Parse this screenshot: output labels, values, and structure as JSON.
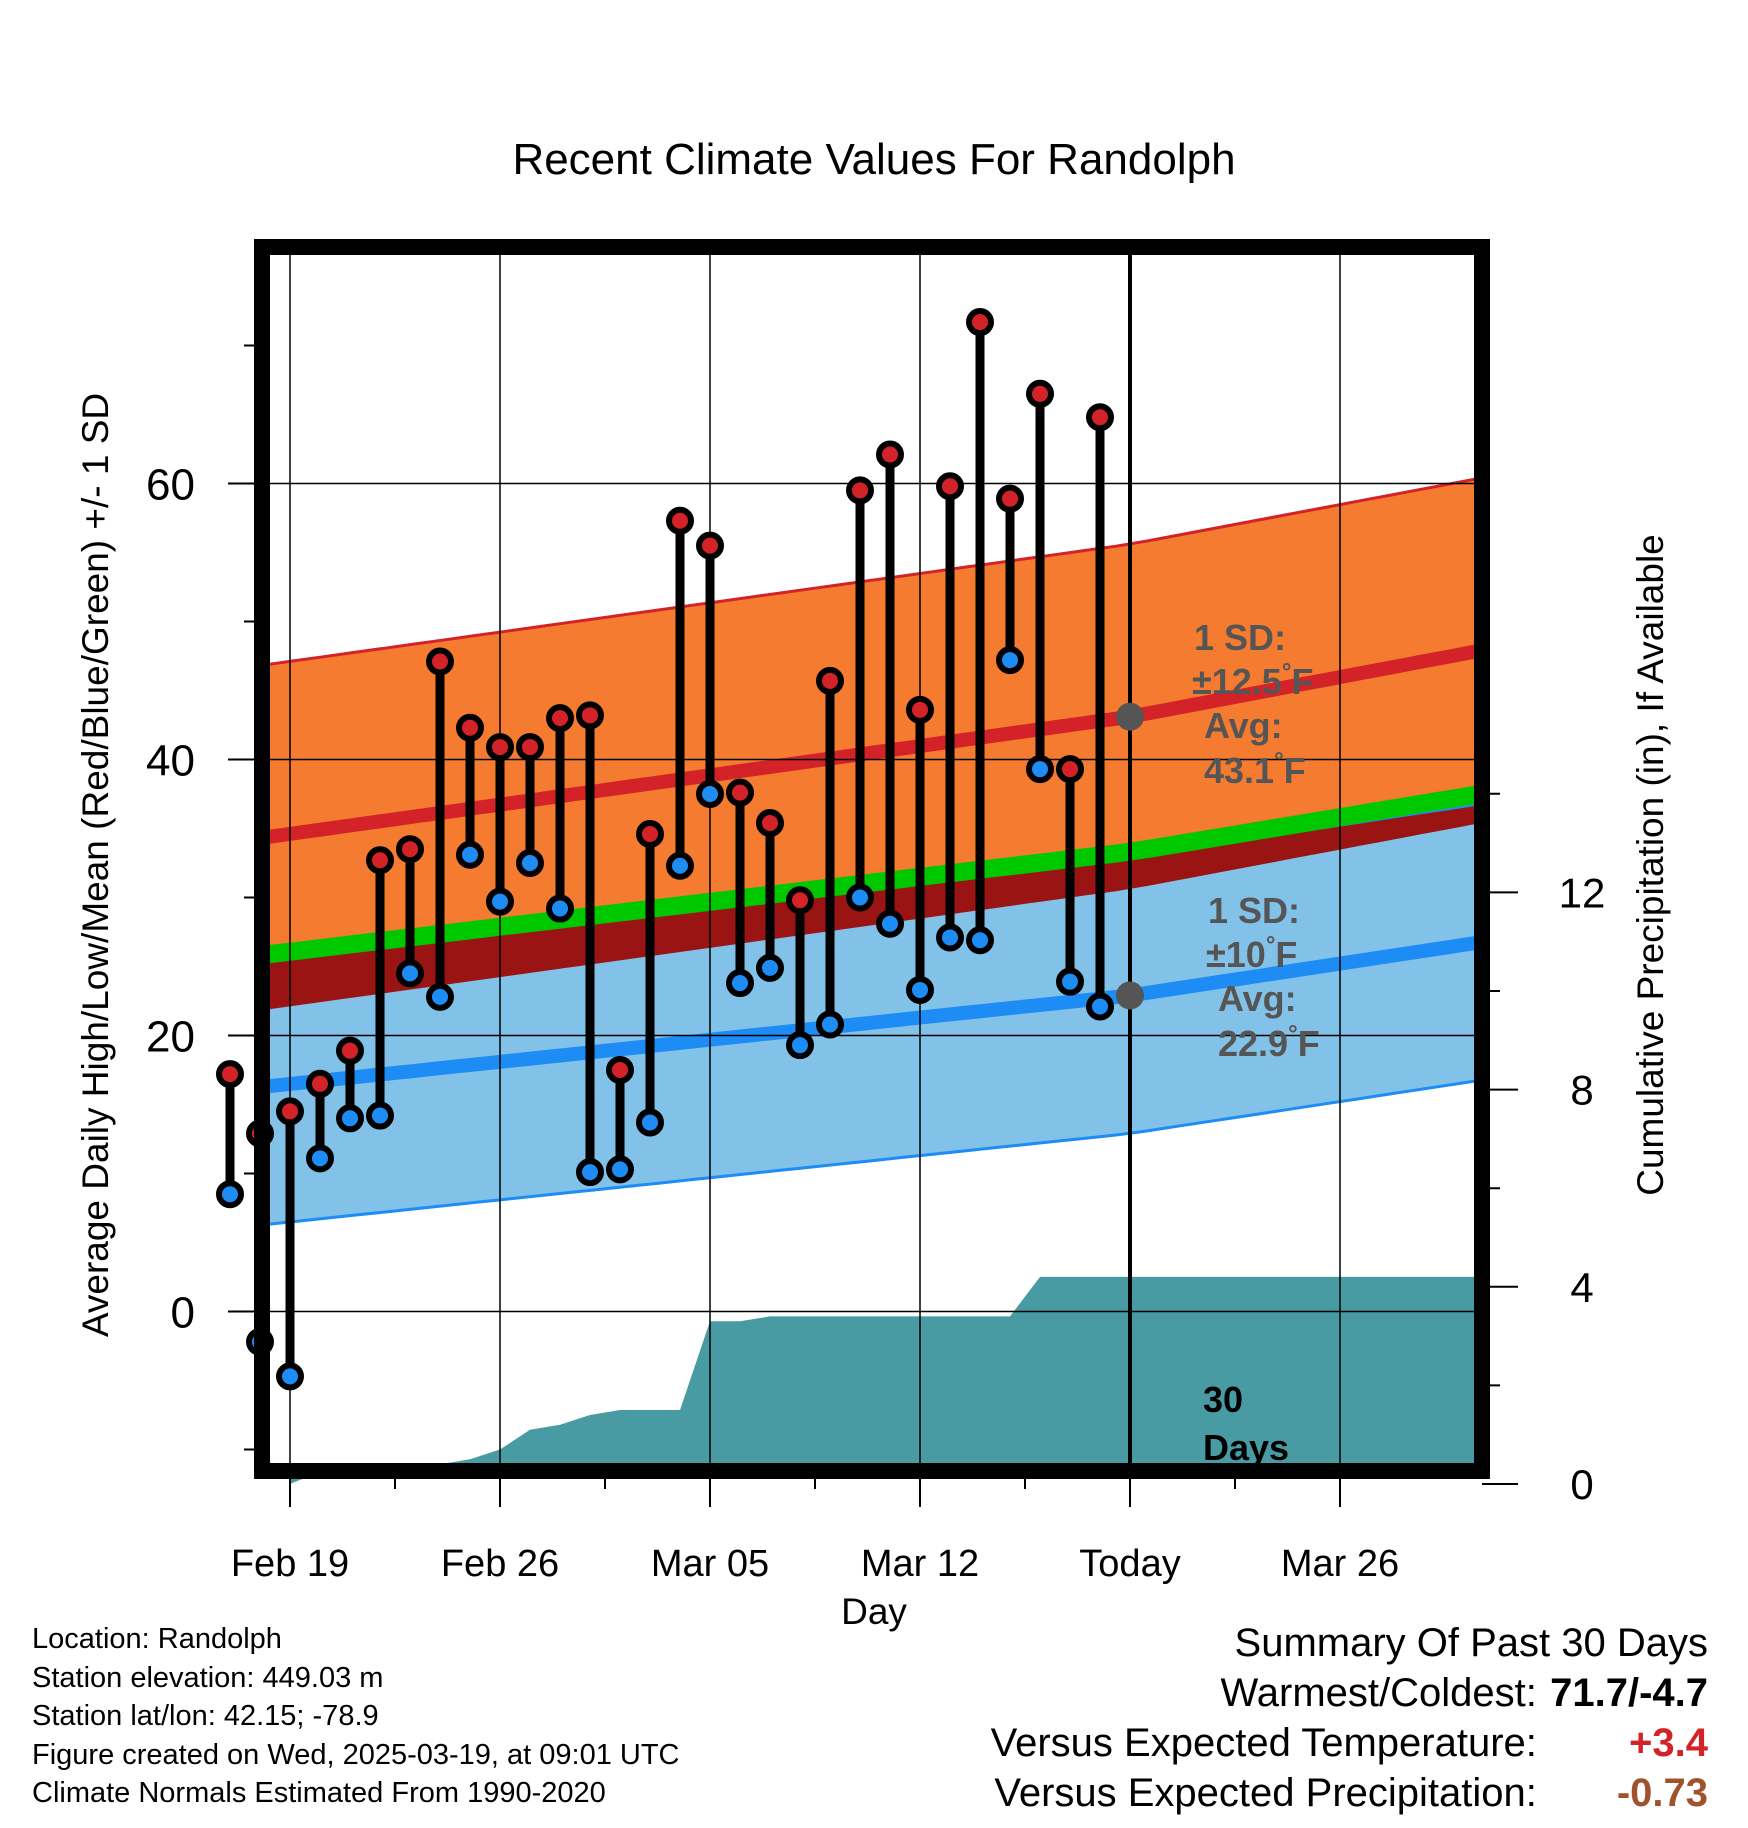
{
  "chart_data": {
    "type": "line",
    "title": "Recent Climate Values For Randolph",
    "xlabel": "Day",
    "ylabel": "Average Daily High/Low/Mean (Red/Blue/Green) +/- 1 SD",
    "ylabel_right": "Cumulative Precipitation (in), If Available",
    "x_tick_labels": [
      "Feb 19",
      "Feb 26",
      "Mar 05",
      "Mar 12",
      "Today",
      "Mar 26"
    ],
    "ylim": [
      -12,
      77
    ],
    "y_ticks": [
      0,
      20,
      40,
      60
    ],
    "y2lim": [
      0,
      24
    ],
    "y2_ticks": [
      0,
      4,
      8,
      12
    ],
    "grid": true,
    "today_marker_label": "30\nDays",
    "series": [
      {
        "name": "High",
        "days": [
          "Feb 17",
          "Feb 18",
          "Feb 19",
          "Feb 20",
          "Feb 21",
          "Feb 22",
          "Feb 23",
          "Feb 24",
          "Feb 25",
          "Feb 26",
          "Feb 27",
          "Feb 28",
          "Mar 01",
          "Mar 02",
          "Mar 03",
          "Mar 04",
          "Mar 05",
          "Mar 06",
          "Mar 07",
          "Mar 08",
          "Mar 09",
          "Mar 10",
          "Mar 11",
          "Mar 12",
          "Mar 13",
          "Mar 14",
          "Mar 15",
          "Mar 16",
          "Mar 17",
          "Mar 18"
        ],
        "values": [
          17.2,
          12.9,
          14.5,
          16.5,
          18.9,
          32.7,
          33.5,
          47.1,
          42.3,
          40.9,
          40.9,
          43.0,
          43.2,
          17.5,
          34.6,
          57.3,
          55.5,
          37.6,
          35.4,
          29.8,
          45.7,
          59.5,
          62.1,
          43.6,
          59.8,
          71.7,
          58.9,
          66.5,
          39.3,
          64.8
        ]
      },
      {
        "name": "Low",
        "days": [
          "Feb 17",
          "Feb 18",
          "Feb 19",
          "Feb 20",
          "Feb 21",
          "Feb 22",
          "Feb 23",
          "Feb 24",
          "Feb 25",
          "Feb 26",
          "Feb 27",
          "Feb 28",
          "Mar 01",
          "Mar 02",
          "Mar 03",
          "Mar 04",
          "Mar 05",
          "Mar 06",
          "Mar 07",
          "Mar 08",
          "Mar 09",
          "Mar 10",
          "Mar 11",
          "Mar 12",
          "Mar 13",
          "Mar 14",
          "Mar 15",
          "Mar 16",
          "Mar 17",
          "Mar 18"
        ],
        "values": [
          8.5,
          -2.2,
          -4.7,
          11.1,
          14.0,
          14.2,
          24.5,
          22.8,
          33.1,
          29.7,
          32.5,
          29.2,
          10.1,
          10.3,
          13.7,
          32.3,
          37.5,
          23.8,
          24.9,
          19.3,
          20.8,
          30.0,
          28.1,
          23.3,
          27.1,
          26.9,
          47.2,
          39.3,
          23.9,
          22.1
        ]
      }
    ],
    "normals": {
      "x_days": [
        "Feb 16",
        "Today",
        "Mar 29"
      ],
      "mean_high": [
        33.7,
        43.1,
        47.2
      ],
      "mean_high_sd": 12.5,
      "mean_low": [
        15.8,
        22.9,
        26.2
      ],
      "mean_low_sd": 10,
      "mean": [
        25.3,
        33.3,
        36.9
      ]
    },
    "annotations": [
      {
        "line1": "1 SD:",
        "line2": "±12.5",
        "line2_unit": "°F",
        "line3": "Avg:",
        "line4": "43.1",
        "line4_unit": "°F"
      },
      {
        "line1": "1 SD:",
        "line2": "±10",
        "line2_unit": "°F",
        "line3": "Avg:",
        "line4": "22.9",
        "line4_unit": "°F"
      }
    ],
    "precipitation": {
      "name": "Cumulative Precipitation (in)",
      "days": [
        "Feb 19",
        "Feb 20",
        "Feb 21",
        "Feb 22",
        "Feb 23",
        "Feb 24",
        "Feb 25",
        "Feb 26",
        "Feb 27",
        "Feb 28",
        "Mar 01",
        "Mar 02",
        "Mar 03",
        "Mar 04",
        "Mar 05",
        "Mar 06",
        "Mar 07",
        "Mar 08",
        "Mar 09",
        "Mar 10",
        "Mar 11",
        "Mar 12",
        "Mar 13",
        "Mar 14",
        "Mar 15",
        "Mar 16",
        "Mar 17",
        "Mar 18",
        "Today",
        "Mar 29"
      ],
      "values": [
        0.0,
        0.25,
        0.4,
        0.4,
        0.4,
        0.4,
        0.5,
        0.7,
        1.1,
        1.2,
        1.4,
        1.5,
        1.5,
        1.5,
        3.3,
        3.3,
        3.4,
        3.4,
        3.4,
        3.4,
        3.4,
        3.4,
        3.4,
        3.4,
        3.4,
        4.2,
        4.2,
        4.2,
        4.2,
        4.2
      ]
    },
    "colors": {
      "high_band": "#f47b30",
      "high_line": "#d42328",
      "low_band": "#82c1e8",
      "low_line": "#1e8cf5",
      "mean_line": "#00c800",
      "overlap": "#9a1414",
      "precip": "#489ba3",
      "high_marker": "#d42328",
      "low_marker": "#1e8cf5",
      "today_dot": "#555555",
      "annotation_text": "#555555"
    }
  },
  "info": {
    "location": "Location: Randolph",
    "elevation": "Station elevation: 449.03 m",
    "latlon": "Station lat/lon: 42.15; -78.9",
    "created": "Figure created on Wed, 2025-03-19, at 09:01 UTC",
    "normals": "Climate Normals Estimated From 1990-2020"
  },
  "summary": {
    "title": "Summary Of Past 30 Days",
    "warm_cold_label": "Warmest/Coldest:",
    "warm_cold_value": "71.7/-4.7",
    "temp_label": "Versus Expected Temperature:",
    "temp_value": "+3.4",
    "temp_color": "#d42328",
    "precip_label": "Versus Expected Precipitation:",
    "precip_value": "-0.73",
    "precip_color": "#a0522d"
  }
}
